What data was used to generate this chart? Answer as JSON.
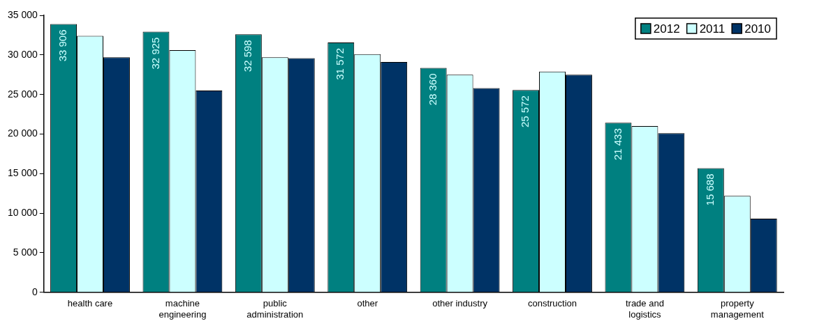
{
  "chart_data": {
    "type": "bar",
    "categories": [
      "health care",
      "machine engineering",
      "public administration",
      "other",
      "other industry",
      "construction",
      "trade and logistics",
      "property management"
    ],
    "series": [
      {
        "name": "2012",
        "color": "#008080",
        "values": [
          33906,
          32925,
          32598,
          31572,
          28360,
          25572,
          21433,
          15688
        ],
        "value_labels": [
          "33 906",
          "32 925",
          "32 598",
          "31 572",
          "28 360",
          "25 572",
          "21 433",
          "15 688"
        ]
      },
      {
        "name": "2011",
        "color": "#ccffff",
        "values": [
          32400,
          30600,
          29700,
          30100,
          27500,
          27900,
          21000,
          12200
        ]
      },
      {
        "name": "2010",
        "color": "#003366",
        "values": [
          29700,
          25500,
          29600,
          29100,
          25800,
          27500,
          20100,
          9300
        ]
      }
    ],
    "ylim": [
      0,
      35000
    ],
    "yticks": [
      {
        "value": 0,
        "label": "0"
      },
      {
        "value": 5000,
        "label": "5 000"
      },
      {
        "value": 10000,
        "label": "10 000"
      },
      {
        "value": 15000,
        "label": "15 000"
      },
      {
        "value": 20000,
        "label": "20 000"
      },
      {
        "value": 25000,
        "label": "25 000"
      },
      {
        "value": 30000,
        "label": "30 000"
      },
      {
        "value": 35000,
        "label": "35 000"
      }
    ],
    "grid": false,
    "legend": "top right"
  }
}
